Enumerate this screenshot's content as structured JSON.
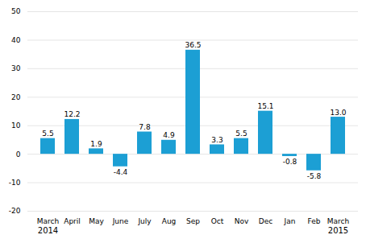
{
  "chart_data": {
    "type": "bar",
    "categories": [
      "March",
      "April",
      "May",
      "June",
      "July",
      "Aug",
      "Sep",
      "Oct",
      "Nov",
      "Dec",
      "Jan",
      "Feb",
      "March"
    ],
    "values": [
      5.5,
      12.2,
      1.9,
      -4.4,
      7.8,
      4.9,
      36.5,
      3.3,
      5.5,
      15.1,
      -0.8,
      -5.8,
      13.0
    ],
    "value_labels": [
      "5.5",
      "12.2",
      "1.9",
      "-4.4",
      "7.8",
      "4.9",
      "36.5",
      "3.3",
      "5.5",
      "15.1",
      "-0.8",
      "-5.8",
      "13.0"
    ],
    "data_labels": true,
    "color": "#1c9fd4",
    "ylim": [
      -20,
      50
    ],
    "yticks": [
      -20,
      -10,
      0,
      10,
      20,
      30,
      40,
      50
    ],
    "grid": true,
    "annotations": [
      {
        "text": "2014",
        "x": 0
      },
      {
        "text": "2015",
        "x": 12
      }
    ]
  }
}
